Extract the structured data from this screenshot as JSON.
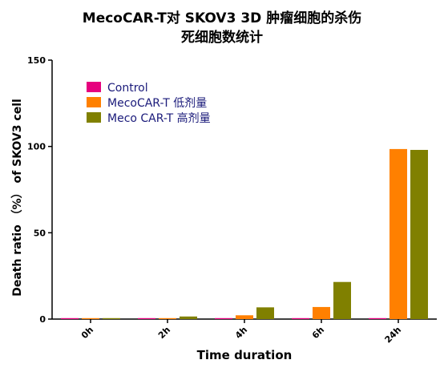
{
  "chart_data": {
    "type": "bar",
    "title_line1": "MecoCAR-T对 SKOV3 3D 肿瘤细胞的杀伤",
    "title_line2": "死细胞数统计",
    "xlabel": "Time duration",
    "ylabel": "Death ratio （%） of SKOV3 cell",
    "categories": [
      "0h",
      "2h",
      "4h",
      "6h",
      "24h"
    ],
    "ylim": [
      0,
      150
    ],
    "yticks": [
      "0",
      "50",
      "100",
      "150"
    ],
    "legend_position": "top-left",
    "series": [
      {
        "name": "Control",
        "color": "#e6007e",
        "values": [
          0.2,
          0.2,
          0.2,
          0.2,
          0.5
        ]
      },
      {
        "name": "MecoCAR-T 低剂量",
        "color": "#ff8000",
        "values": [
          0.2,
          0.5,
          2.2,
          7.0,
          98.5
        ]
      },
      {
        "name": "Meco CAR-T 高剂量",
        "color": "#808000",
        "values": [
          0.2,
          1.5,
          6.8,
          21.5,
          98.0
        ]
      }
    ]
  }
}
